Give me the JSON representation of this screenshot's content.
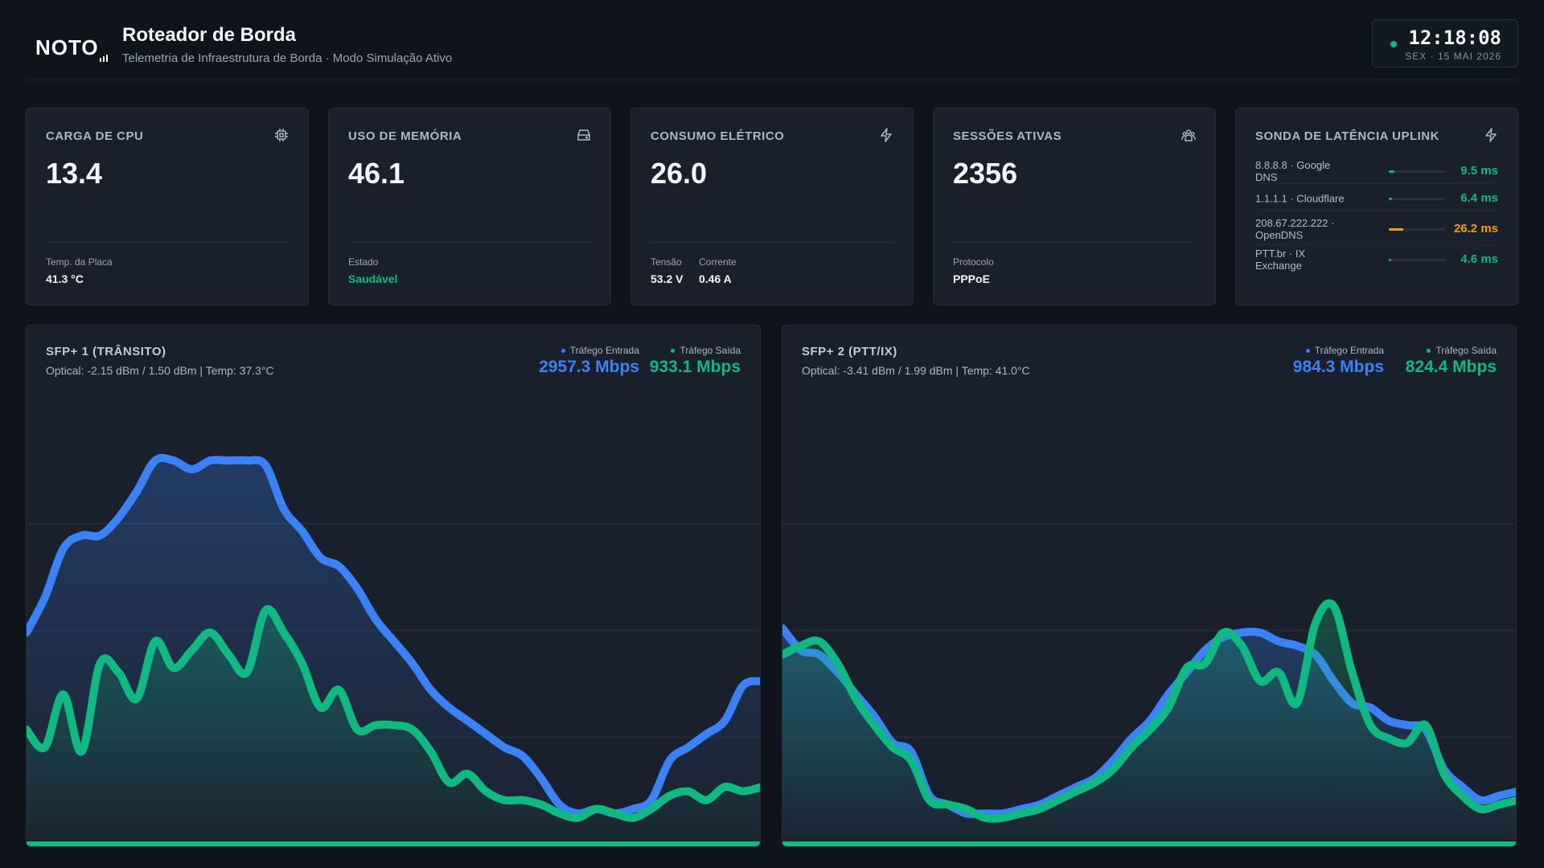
{
  "header": {
    "logo_text": "NOTO",
    "title": "Roteador de Borda",
    "subtitle": "Telemetria de Infraestrutura de Borda · Modo Simulação Ativo",
    "clock_time": "12:18:08",
    "clock_date": "SEX · 15 MAI 2026"
  },
  "cards": {
    "cpu": {
      "label": "CARGA DE CPU",
      "value": "13.4",
      "icon": "chip-icon",
      "meta": [
        {
          "label": "Temp. da Placa",
          "value": "41.3 °C"
        }
      ]
    },
    "mem": {
      "label": "USO DE MEMÓRIA",
      "value": "46.1",
      "icon": "storage-icon",
      "meta": [
        {
          "label": "Estado",
          "value": "Saudável"
        }
      ]
    },
    "power": {
      "label": "CONSUMO ELÉTRICO",
      "value": "26.0",
      "icon": "bolt-icon",
      "meta": [
        {
          "label": "Tensão",
          "value": "53.2 V"
        },
        {
          "label": "Corrente",
          "value": "0.46 A"
        }
      ]
    },
    "sessions": {
      "label": "SESSÕES ATIVAS",
      "value": "2356",
      "icon": "users-icon",
      "meta": [
        {
          "label": "Protocolo",
          "value": "PPPoE"
        }
      ]
    },
    "latency": {
      "label": "SONDA DE LATÊNCIA UPLINK",
      "icon": "bolt-icon",
      "rows": [
        {
          "name": "8.8.8.8 · Google DNS",
          "value": "9.5 ms",
          "fill": 0.1,
          "color": "#10b981"
        },
        {
          "name": "1.1.1.1 · Cloudflare",
          "value": "6.4 ms",
          "fill": 0.05,
          "color": "#10b981"
        },
        {
          "name": "208.67.222.222 · OpenDNS",
          "value": "26.2 ms",
          "fill": 0.26,
          "color": "#f59e0b"
        },
        {
          "name": "PTT.br · IX Exchange",
          "value": "4.6 ms",
          "fill": 0.04,
          "color": "#10b981"
        }
      ]
    }
  },
  "colors": {
    "inbound": "#3b82f6",
    "outbound": "#10b981"
  },
  "panels": [
    {
      "title": "SFP+ 1 (TRÂNSITO)",
      "optical": "Optical: -2.15 dBm / 1.50 dBm | Temp: 37.3°C",
      "in_label": "Tráfego Entrada",
      "in_value": "2957.3 Mbps",
      "out_label": "Tráfego Saída",
      "out_value": "933.1 Mbps"
    },
    {
      "title": "SFP+ 2 (PTT/IX)",
      "optical": "Optical: -3.41 dBm / 1.99 dBm | Temp: 41.0°C",
      "in_label": "Tráfego Entrada",
      "in_value": "984.3 Mbps",
      "out_label": "Tráfego Saída",
      "out_value": "824.4 Mbps"
    }
  ],
  "chart_data": [
    {
      "type": "area",
      "series": [
        {
          "name": "Tráfego Entrada",
          "values": [
            0.47,
            0.55,
            0.66,
            0.69,
            0.69,
            0.73,
            0.79,
            0.86,
            0.86,
            0.84,
            0.86,
            0.86,
            0.86,
            0.85,
            0.75,
            0.7,
            0.64,
            0.62,
            0.57,
            0.5,
            0.45,
            0.4,
            0.34,
            0.3,
            0.27,
            0.24,
            0.21,
            0.19,
            0.14,
            0.08,
            0.06,
            0.07,
            0.06,
            0.07,
            0.09,
            0.18,
            0.21,
            0.24,
            0.27,
            0.35,
            0.36
          ]
        },
        {
          "name": "Tráfego Saída",
          "values": [
            0.25,
            0.21,
            0.33,
            0.2,
            0.4,
            0.38,
            0.32,
            0.45,
            0.39,
            0.43,
            0.47,
            0.42,
            0.38,
            0.52,
            0.47,
            0.4,
            0.3,
            0.34,
            0.25,
            0.26,
            0.26,
            0.25,
            0.2,
            0.13,
            0.15,
            0.11,
            0.09,
            0.09,
            0.08,
            0.06,
            0.05,
            0.07,
            0.06,
            0.05,
            0.07,
            0.1,
            0.11,
            0.09,
            0.12,
            0.11,
            0.12
          ]
        }
      ]
    },
    {
      "type": "area",
      "series": [
        {
          "name": "Tráfego Entrada",
          "values": [
            0.48,
            0.43,
            0.42,
            0.38,
            0.33,
            0.28,
            0.22,
            0.2,
            0.1,
            0.08,
            0.06,
            0.06,
            0.06,
            0.07,
            0.08,
            0.1,
            0.12,
            0.14,
            0.18,
            0.23,
            0.27,
            0.33,
            0.38,
            0.43,
            0.46,
            0.47,
            0.47,
            0.45,
            0.44,
            0.42,
            0.36,
            0.31,
            0.3,
            0.27,
            0.26,
            0.25,
            0.16,
            0.12,
            0.09,
            0.1,
            0.11
          ]
        },
        {
          "name": "Tráfego Saída",
          "values": [
            0.42,
            0.44,
            0.45,
            0.4,
            0.32,
            0.26,
            0.21,
            0.18,
            0.09,
            0.08,
            0.07,
            0.05,
            0.05,
            0.06,
            0.07,
            0.09,
            0.11,
            0.13,
            0.16,
            0.21,
            0.25,
            0.3,
            0.39,
            0.4,
            0.47,
            0.44,
            0.36,
            0.38,
            0.31,
            0.49,
            0.53,
            0.38,
            0.26,
            0.23,
            0.22,
            0.26,
            0.15,
            0.1,
            0.07,
            0.08,
            0.09
          ]
        }
      ]
    }
  ]
}
